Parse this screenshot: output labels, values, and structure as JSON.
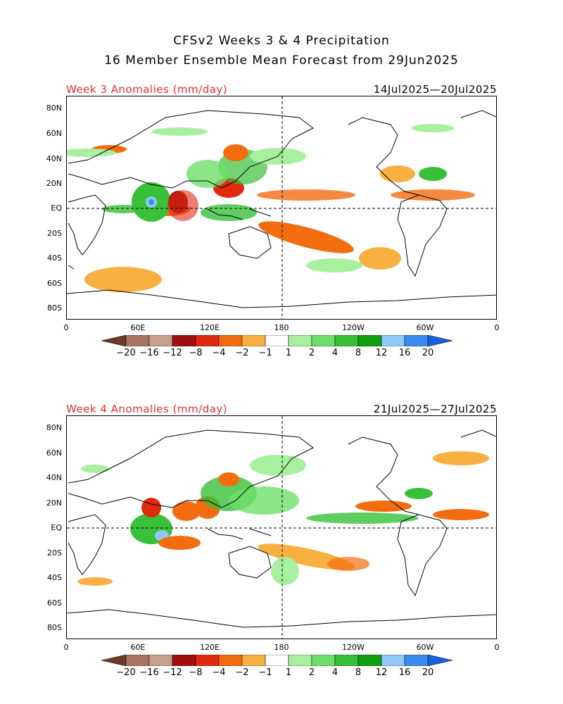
{
  "header": {
    "title_line1": "CFSv2 Weeks 3 & 4 Precipitation",
    "title_line2": "16 Member Ensemble Mean Forecast from 29Jun2025"
  },
  "panels": [
    {
      "label": "Week 3 Anomalies (mm/day)",
      "dates": "14Jul2025—20Jul2025"
    },
    {
      "label": "Week 4 Anomalies (mm/day)",
      "dates": "21Jul2025—27Jul2025"
    }
  ],
  "axes": {
    "lat_labels": [
      "80N",
      "60N",
      "40N",
      "20N",
      "EQ",
      "20S",
      "40S",
      "60S",
      "80S"
    ],
    "lon_labels": [
      "0",
      "60E",
      "120E",
      "180",
      "120W",
      "60W",
      "0"
    ]
  },
  "colorbar": {
    "labels": [
      "−20",
      "−16",
      "−12",
      "−8",
      "−4",
      "−2",
      "−1",
      "1",
      "2",
      "4",
      "8",
      "12",
      "16",
      "20"
    ],
    "colors": [
      "#6b3a2a",
      "#a87560",
      "#c8a090",
      "#a01010",
      "#e02a10",
      "#f26c10",
      "#f8b040",
      "#ffffff",
      "#a8f0a0",
      "#6ee06a",
      "#38c038",
      "#10a010",
      "#90c8f8",
      "#3c8cf0",
      "#1860e0"
    ]
  }
}
